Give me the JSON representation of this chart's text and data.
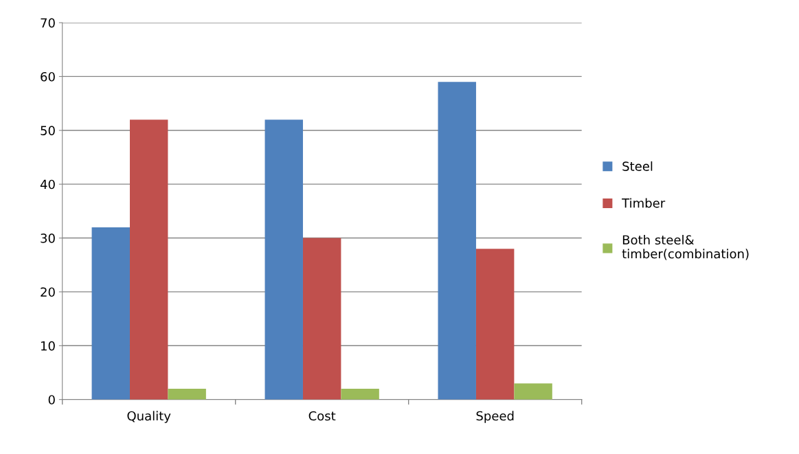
{
  "chart_data": {
    "type": "bar",
    "categories": [
      "Quality",
      "Cost",
      "Speed"
    ],
    "series": [
      {
        "name": "Steel",
        "color": "#4f81bd",
        "values": [
          32,
          52,
          59
        ]
      },
      {
        "name": "Timber",
        "color": "#c0504d",
        "values": [
          52,
          30,
          28
        ]
      },
      {
        "name": "Both steel&\ntimber(combination)",
        "color": "#9bbb59",
        "values": [
          2,
          2,
          3
        ]
      }
    ],
    "ylim": [
      0,
      70
    ],
    "yticks": [
      0,
      10,
      20,
      30,
      40,
      50,
      60,
      70
    ],
    "grid": "y",
    "legend": "right"
  }
}
